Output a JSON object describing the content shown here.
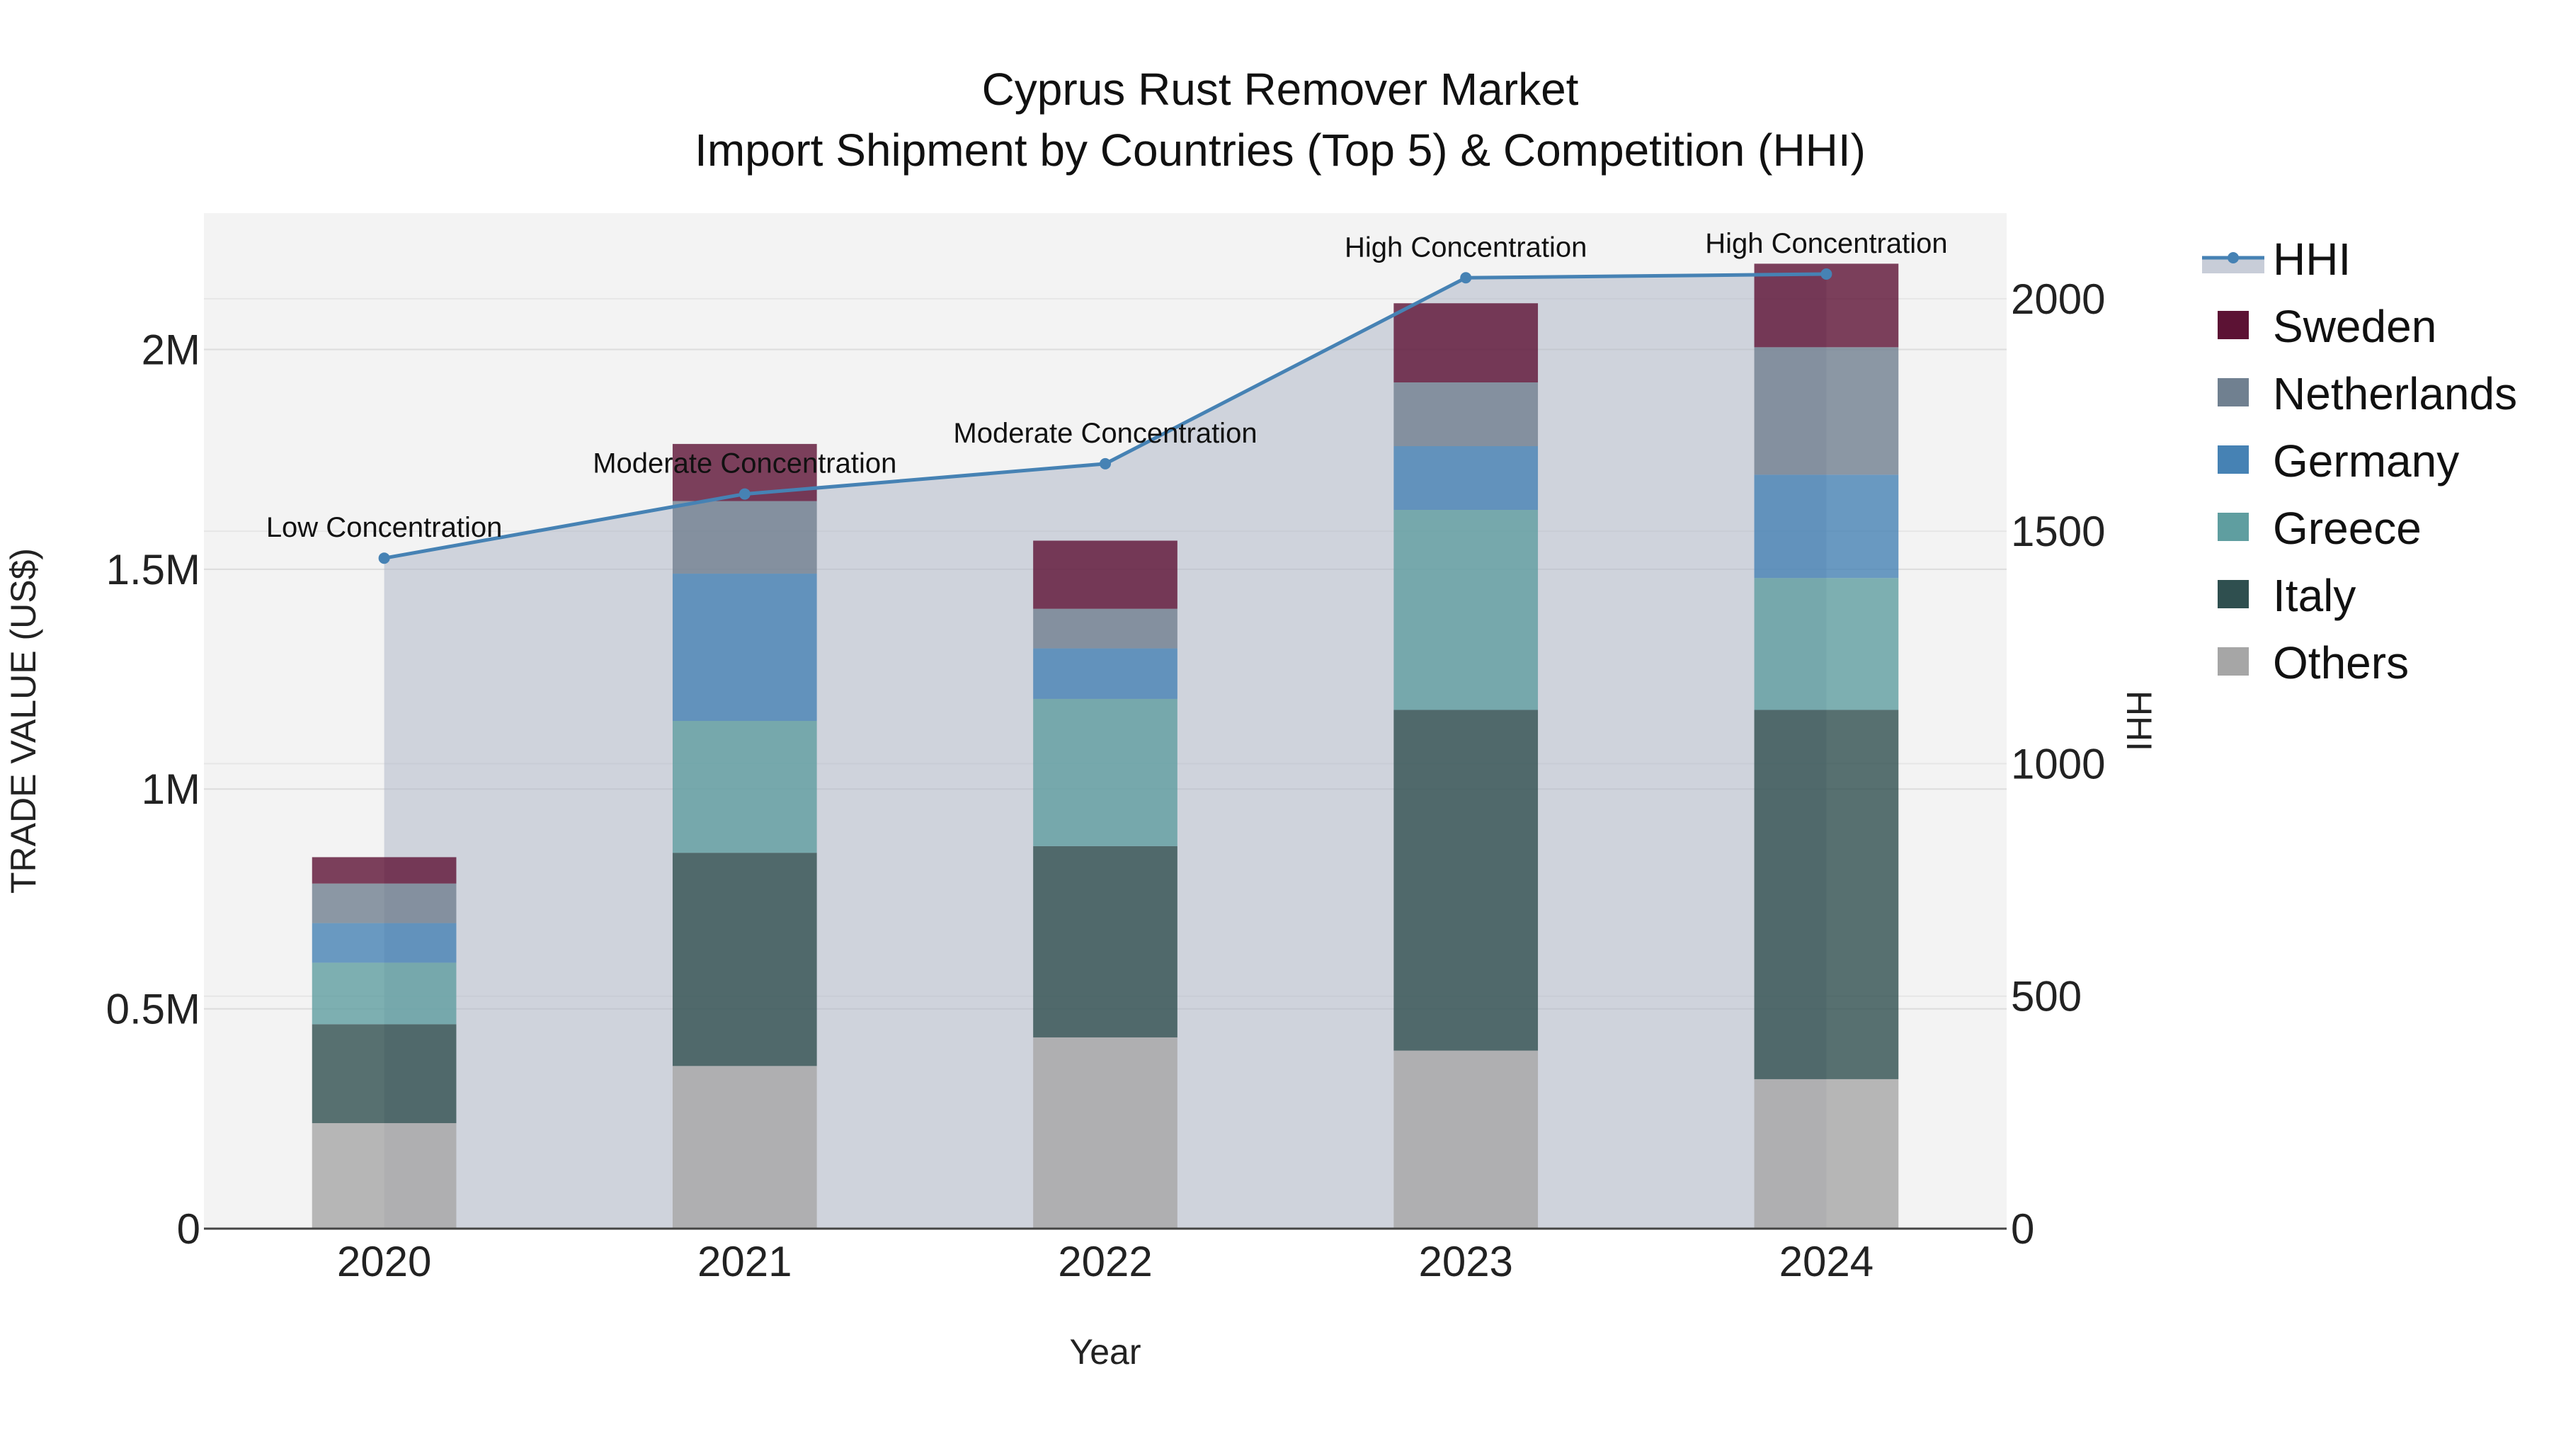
{
  "chart_data": {
    "type": "bar",
    "title": "Cyprus Rust Remover Market",
    "subtitle": "Import Shipment by Countries (Top 5) & Competition (HHI)",
    "xlabel": "Year",
    "ylabel": "TRADE VALUE (US$)",
    "y2label": "HHI",
    "categories": [
      "2020",
      "2021",
      "2022",
      "2023",
      "2024"
    ],
    "ylim": [
      0,
      2310000
    ],
    "y2lim": [
      0,
      2184
    ],
    "yticks": [
      {
        "value": 0,
        "label": "0"
      },
      {
        "value": 500000,
        "label": "0.5M"
      },
      {
        "value": 1000000,
        "label": "1M"
      },
      {
        "value": 1500000,
        "label": "1.5M"
      },
      {
        "value": 2000000,
        "label": "2M"
      }
    ],
    "y2ticks": [
      {
        "value": 0,
        "label": "0"
      },
      {
        "value": 500,
        "label": "500"
      },
      {
        "value": 1000,
        "label": "1000"
      },
      {
        "value": 1500,
        "label": "1500"
      },
      {
        "value": 2000,
        "label": "2000"
      }
    ],
    "series": [
      {
        "name": "Others",
        "color": "#a6a6a6",
        "values": [
          240000,
          370000,
          435000,
          405000,
          340000
        ]
      },
      {
        "name": "Italy",
        "color": "#2f4f4f",
        "values": [
          225000,
          485000,
          435000,
          775000,
          840000
        ]
      },
      {
        "name": "Greece",
        "color": "#5f9ea0",
        "values": [
          140000,
          300000,
          335000,
          455000,
          300000
        ]
      },
      {
        "name": "Germany",
        "color": "#4682b4",
        "values": [
          90000,
          335000,
          115000,
          145000,
          235000
        ]
      },
      {
        "name": "Netherlands",
        "color": "#708090",
        "values": [
          90000,
          165000,
          90000,
          145000,
          290000
        ]
      },
      {
        "name": "Sweden",
        "color": "#5c1234",
        "values": [
          60000,
          130000,
          155000,
          180000,
          190000
        ]
      }
    ],
    "hhi": {
      "name": "HHI",
      "color": "#4682b4",
      "values": [
        1442,
        1580,
        1645,
        2045,
        2053
      ],
      "annotations": [
        "Low Concentration",
        "Moderate Concentration",
        "Moderate Concentration",
        "High Concentration",
        "High Concentration"
      ]
    },
    "legend": [
      "HHI",
      "Sweden",
      "Netherlands",
      "Germany",
      "Greece",
      "Italy",
      "Others"
    ],
    "legend_position": "right"
  }
}
